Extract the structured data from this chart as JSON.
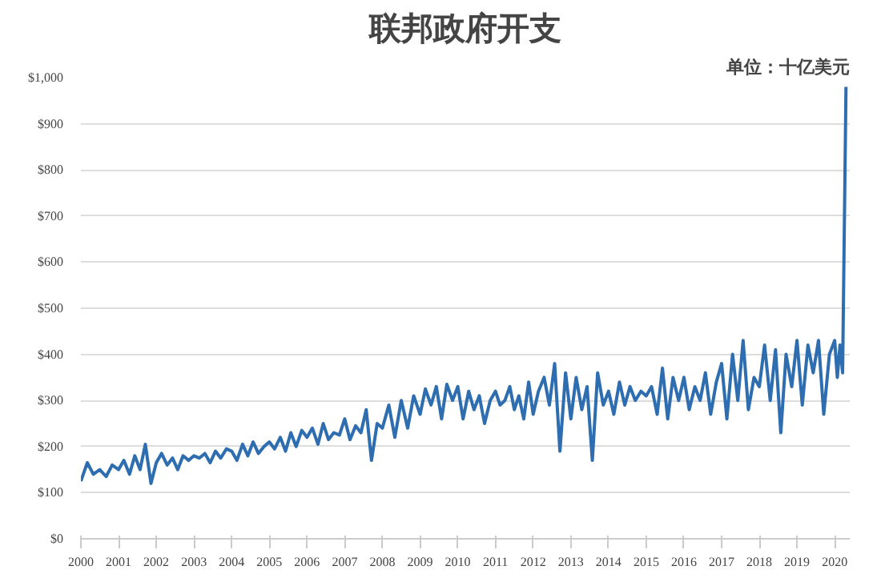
{
  "chart_data": {
    "type": "line",
    "title": "联邦政府开支",
    "annotations": [
      "单位：十亿美元"
    ],
    "x": [
      2000,
      2000.17,
      2000.33,
      2000.5,
      2000.67,
      2000.83,
      2001,
      2001.14,
      2001.29,
      2001.43,
      2001.57,
      2001.71,
      2001.86,
      2002,
      2002.14,
      2002.29,
      2002.43,
      2002.57,
      2002.71,
      2002.86,
      2003,
      2003.14,
      2003.29,
      2003.43,
      2003.57,
      2003.71,
      2003.86,
      2004,
      2004.14,
      2004.29,
      2004.43,
      2004.57,
      2004.71,
      2004.86,
      2005,
      2005.14,
      2005.29,
      2005.43,
      2005.57,
      2005.71,
      2005.86,
      2006,
      2006.14,
      2006.29,
      2006.43,
      2006.57,
      2006.71,
      2006.86,
      2007,
      2007.14,
      2007.29,
      2007.43,
      2007.57,
      2007.71,
      2007.86,
      2008,
      2008.17,
      2008.33,
      2008.5,
      2008.67,
      2008.83,
      2009,
      2009.14,
      2009.29,
      2009.43,
      2009.57,
      2009.71,
      2009.86,
      2010,
      2010.14,
      2010.29,
      2010.43,
      2010.57,
      2010.71,
      2010.86,
      2011,
      2011.12,
      2011.25,
      2011.38,
      2011.5,
      2011.62,
      2011.75,
      2011.88,
      2012,
      2012.14,
      2012.29,
      2012.43,
      2012.57,
      2012.71,
      2012.86,
      2013,
      2013.14,
      2013.29,
      2013.43,
      2013.57,
      2013.71,
      2013.86,
      2014,
      2014.14,
      2014.29,
      2014.43,
      2014.57,
      2014.71,
      2014.86,
      2015,
      2015.14,
      2015.29,
      2015.43,
      2015.57,
      2015.71,
      2015.86,
      2016,
      2016.14,
      2016.29,
      2016.43,
      2016.57,
      2016.71,
      2016.86,
      2017,
      2017.14,
      2017.29,
      2017.43,
      2017.57,
      2017.71,
      2017.86,
      2018,
      2018.14,
      2018.29,
      2018.43,
      2018.57,
      2018.71,
      2018.86,
      2019,
      2019.14,
      2019.29,
      2019.43,
      2019.57,
      2019.71,
      2019.86,
      2020,
      2020.07,
      2020.14,
      2020.21,
      2020.3
    ],
    "series": [
      {
        "color": "#2e6eb0",
        "values": [
          125,
          165,
          140,
          150,
          135,
          160,
          150,
          170,
          140,
          180,
          150,
          205,
          120,
          165,
          185,
          160,
          175,
          150,
          180,
          170,
          180,
          175,
          185,
          165,
          190,
          175,
          195,
          190,
          170,
          205,
          180,
          210,
          185,
          200,
          210,
          195,
          220,
          190,
          230,
          200,
          235,
          220,
          240,
          205,
          250,
          215,
          230,
          225,
          260,
          215,
          245,
          230,
          280,
          170,
          250,
          240,
          290,
          220,
          300,
          240,
          310,
          270,
          325,
          290,
          330,
          260,
          335,
          300,
          330,
          260,
          320,
          280,
          310,
          250,
          300,
          320,
          290,
          300,
          330,
          280,
          310,
          260,
          340,
          270,
          320,
          350,
          290,
          380,
          190,
          360,
          260,
          350,
          280,
          330,
          170,
          360,
          290,
          320,
          270,
          340,
          290,
          330,
          300,
          320,
          310,
          330,
          270,
          370,
          260,
          350,
          300,
          350,
          280,
          330,
          300,
          360,
          270,
          340,
          380,
          260,
          400,
          300,
          430,
          280,
          350,
          330,
          420,
          300,
          410,
          230,
          400,
          330,
          430,
          290,
          420,
          360,
          430,
          270,
          400,
          430,
          350,
          420,
          360,
          980
        ]
      }
    ],
    "xlim": [
      2000,
      2020.4
    ],
    "xticks": [
      2000,
      2001,
      2002,
      2003,
      2004,
      2005,
      2006,
      2007,
      2008,
      2009,
      2010,
      2011,
      2012,
      2013,
      2014,
      2015,
      2016,
      2017,
      2018,
      2019,
      2020
    ],
    "ylim": [
      0,
      1000
    ],
    "yticks": [
      {
        "value": 0,
        "label": "$0"
      },
      {
        "value": 100,
        "label": "$100"
      },
      {
        "value": 200,
        "label": "$200"
      },
      {
        "value": 300,
        "label": "$300"
      },
      {
        "value": 400,
        "label": "$400"
      },
      {
        "value": 500,
        "label": "$500"
      },
      {
        "value": 600,
        "label": "$600"
      },
      {
        "value": 700,
        "label": "$700"
      },
      {
        "value": 800,
        "label": "$800"
      },
      {
        "value": 900,
        "label": "$900"
      },
      {
        "value": 1000,
        "label": "$1,000"
      }
    ],
    "grid": "y",
    "marker": "none",
    "line_style": "solid"
  }
}
